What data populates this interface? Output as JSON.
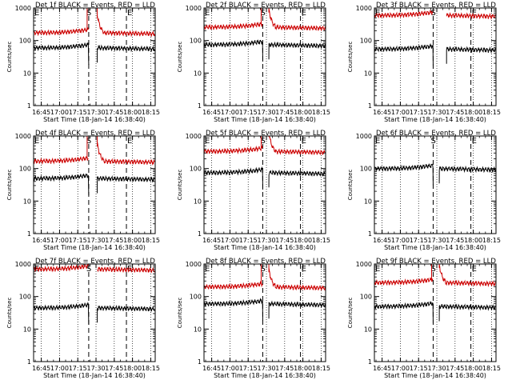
{
  "figure": {
    "ylabel": "Counts/sec",
    "xlabel": "Start Time (18-Jan-14 16:38:40)",
    "x_ticks": [
      "16:45",
      "17:00",
      "17:15",
      "17:30",
      "17:45",
      "18:00",
      "18:15"
    ],
    "y_ticks": [
      "1",
      "10",
      "100",
      "1000"
    ],
    "marker_S": "S",
    "marker_E": "E",
    "colors": {
      "events": "#000000",
      "lld": "#cc0000",
      "axes": "#000000",
      "background": "#ffffff"
    }
  },
  "chart_data": [
    {
      "type": "line",
      "title": "Det 1f BLACK = Events, RED = LLD",
      "ylabel": "Counts/sec",
      "xlabel": "Start Time (18-Jan-14 16:38:40)",
      "yscale": "log",
      "ylim": [
        1,
        1000
      ],
      "xlim": [
        "16:38:40",
        "18:18:40"
      ],
      "events_level": 60,
      "lld_level": 175,
      "S": "17:24",
      "E": "17:55",
      "gap": [
        "17:24",
        "17:31"
      ],
      "lld_spike": true,
      "series": [
        {
          "name": "BLACK = Events",
          "color": "#000000"
        },
        {
          "name": "RED = LLD",
          "color": "#cc0000"
        }
      ]
    },
    {
      "type": "line",
      "title": "Det 2f BLACK = Events, RED = LLD",
      "ylabel": "Counts/sec",
      "xlabel": "Start Time (18-Jan-14 16:38:40)",
      "yscale": "log",
      "ylim": [
        1,
        1000
      ],
      "xlim": [
        "16:38:40",
        "18:18:40"
      ],
      "events_level": 75,
      "lld_level": 260,
      "S": "17:27",
      "E": "17:58",
      "gap": [
        "17:27",
        "17:32"
      ],
      "lld_spike": true,
      "series": [
        {
          "name": "BLACK = Events",
          "color": "#000000"
        },
        {
          "name": "RED = LLD",
          "color": "#cc0000"
        }
      ]
    },
    {
      "type": "line",
      "title": "Det 3f BLACK = Events, RED = LLD",
      "ylabel": "Counts/sec",
      "xlabel": "Start Time (18-Jan-14 16:38:40)",
      "yscale": "log",
      "ylim": [
        1,
        1000
      ],
      "xlim": [
        "16:38:40",
        "18:18:40"
      ],
      "events_level": 55,
      "lld_level": 600,
      "S": "17:27",
      "E": "17:58",
      "gap": [
        "17:27",
        "17:38"
      ],
      "lld_spike": false,
      "series": [
        {
          "name": "BLACK = Events",
          "color": "#000000"
        },
        {
          "name": "RED = LLD",
          "color": "#cc0000"
        }
      ]
    },
    {
      "type": "line",
      "title": "Det 4f BLACK = Events, RED = LLD",
      "ylabel": "Counts/sec",
      "xlabel": "Start Time (18-Jan-14 16:38:40)",
      "yscale": "log",
      "ylim": [
        1,
        1000
      ],
      "xlim": [
        "16:38:40",
        "18:18:40"
      ],
      "events_level": 50,
      "lld_level": 170,
      "S": "17:24",
      "E": "17:55",
      "gap": [
        "17:24",
        "17:31"
      ],
      "lld_spike": true,
      "series": [
        {
          "name": "BLACK = Events",
          "color": "#000000"
        },
        {
          "name": "RED = LLD",
          "color": "#cc0000"
        }
      ]
    },
    {
      "type": "line",
      "title": "Det 5f BLACK = Events, RED = LLD",
      "ylabel": "Counts/sec",
      "xlabel": "Start Time (18-Jan-14 16:38:40)",
      "yscale": "log",
      "ylim": [
        1,
        1000
      ],
      "xlim": [
        "16:38:40",
        "18:18:40"
      ],
      "events_level": 75,
      "lld_level": 340,
      "S": "17:27",
      "E": "17:58",
      "gap": [
        "17:27",
        "17:32"
      ],
      "lld_spike": true,
      "series": [
        {
          "name": "BLACK = Events",
          "color": "#000000"
        },
        {
          "name": "RED = LLD",
          "color": "#cc0000"
        }
      ]
    },
    {
      "type": "line",
      "title": "Det 6f BLACK = Events, RED = LLD",
      "ylabel": "Counts/sec",
      "xlabel": "Start Time (18-Jan-14 16:38:40)",
      "yscale": "log",
      "ylim": [
        1,
        1000
      ],
      "xlim": [
        "16:38:40",
        "18:18:40"
      ],
      "events_level": 100,
      "lld_level": null,
      "S": "17:27",
      "E": "17:58",
      "gap": [
        "17:27",
        "17:32"
      ],
      "lld_spike": false,
      "series": [
        {
          "name": "BLACK = Events",
          "color": "#000000"
        },
        {
          "name": "RED = LLD",
          "color": "#cc0000"
        }
      ]
    },
    {
      "type": "line",
      "title": "Det 7f BLACK = Events, RED = LLD",
      "ylabel": "Counts/sec",
      "xlabel": "Start Time (18-Jan-14 16:38:40)",
      "yscale": "log",
      "ylim": [
        1,
        1000
      ],
      "xlim": [
        "16:38:40",
        "18:18:40"
      ],
      "events_level": 45,
      "lld_level": 700,
      "S": "17:24",
      "E": "17:55",
      "gap": [
        "17:24",
        "17:31"
      ],
      "lld_spike": false,
      "series": [
        {
          "name": "BLACK = Events",
          "color": "#000000"
        },
        {
          "name": "RED = LLD",
          "color": "#cc0000"
        }
      ]
    },
    {
      "type": "line",
      "title": "Det 8f BLACK = Events, RED = LLD",
      "ylabel": "Counts/sec",
      "xlabel": "Start Time (18-Jan-14 16:38:40)",
      "yscale": "log",
      "ylim": [
        1,
        1000
      ],
      "xlim": [
        "16:38:40",
        "18:18:40"
      ],
      "events_level": 60,
      "lld_level": 200,
      "S": "17:27",
      "E": "17:58",
      "gap": [
        "17:27",
        "17:32"
      ],
      "lld_spike": true,
      "series": [
        {
          "name": "BLACK = Events",
          "color": "#000000"
        },
        {
          "name": "RED = LLD",
          "color": "#cc0000"
        }
      ]
    },
    {
      "type": "line",
      "title": "Det 9f BLACK = Events, RED = LLD",
      "ylabel": "Counts/sec",
      "xlabel": "Start Time (18-Jan-14 16:38:40)",
      "yscale": "log",
      "ylim": [
        1,
        1000
      ],
      "xlim": [
        "16:38:40",
        "18:18:40"
      ],
      "events_level": 50,
      "lld_level": 270,
      "S": "17:27",
      "E": "17:58",
      "gap": [
        "17:27",
        "17:32"
      ],
      "lld_spike": true,
      "series": [
        {
          "name": "BLACK = Events",
          "color": "#000000"
        },
        {
          "name": "RED = LLD",
          "color": "#cc0000"
        }
      ]
    }
  ]
}
